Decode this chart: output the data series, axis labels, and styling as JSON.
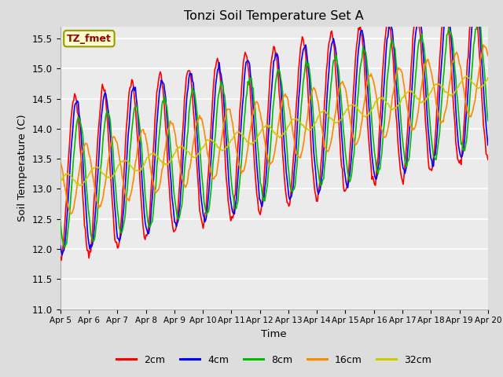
{
  "title": "Tonzi Soil Temperature Set A",
  "xlabel": "Time",
  "ylabel": "Soil Temperature (C)",
  "ylim": [
    11.0,
    15.7
  ],
  "yticks": [
    11.0,
    11.5,
    12.0,
    12.5,
    13.0,
    13.5,
    14.0,
    14.5,
    15.0,
    15.5
  ],
  "xtick_labels": [
    "Apr 5",
    "Apr 6",
    "Apr 7",
    "Apr 8",
    "Apr 9",
    "Apr 10",
    "Apr 11",
    "Apr 12",
    "Apr 13",
    "Apr 14",
    "Apr 15",
    "Apr 16",
    "Apr 17",
    "Apr 18",
    "Apr 19",
    "Apr 20"
  ],
  "annotation_text": "TZ_fmet",
  "annotation_color": "#990000",
  "annotation_bg": "#ffffcc",
  "legend_labels": [
    "2cm",
    "4cm",
    "8cm",
    "16cm",
    "32cm"
  ],
  "legend_colors": [
    "#ff0000",
    "#0000ff",
    "#00bb00",
    "#ff8800",
    "#cccc00"
  ],
  "bg_color": "#dddddd",
  "plot_bg": "#ebebeb",
  "n_points": 480,
  "time_days": 15,
  "base_temp": 13.15,
  "trend": 0.115,
  "amplitudes": [
    1.35,
    1.25,
    1.05,
    0.55,
    0.12
  ],
  "phase_lags_days": [
    0.0,
    0.07,
    0.15,
    0.38,
    0.72
  ],
  "offsets": [
    0.0,
    0.0,
    -0.1,
    -0.05,
    -0.05
  ],
  "noise_levels": [
    0.04,
    0.03,
    0.03,
    0.02,
    0.01
  ],
  "lw": 1.2
}
